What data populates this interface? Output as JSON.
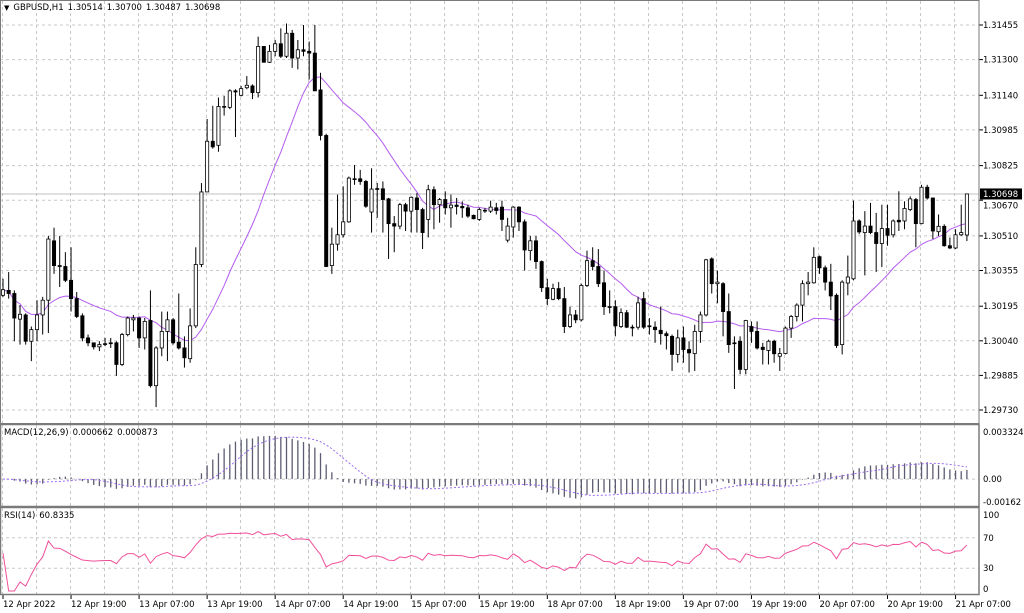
{
  "chart_data": {
    "type": "candlestick",
    "header": {
      "menu_icon": "triangle-down-icon",
      "symbol_timeframe": "GBPUSD,H1",
      "open": "1.30514",
      "high": "1.30700",
      "low": "1.30487",
      "close": "1.30698"
    },
    "current_price_label": "1.30698",
    "current_price": 1.30698,
    "y_ticks": [
      "1.31455",
      "1.31300",
      "1.31140",
      "1.30985",
      "1.30825",
      "1.30670",
      "1.30510",
      "1.30355",
      "1.30195",
      "1.30040",
      "1.29885",
      "1.29730"
    ],
    "ylim": [
      1.2973,
      1.31455
    ],
    "x_ticks": [
      {
        "bar": 0,
        "label": "12 Apr 2022"
      },
      {
        "bar": 12,
        "label": "12 Apr 19:00"
      },
      {
        "bar": 24,
        "label": "13 Apr 07:00"
      },
      {
        "bar": 36,
        "label": "13 Apr 19:00"
      },
      {
        "bar": 48,
        "label": "14 Apr 07:00"
      },
      {
        "bar": 60,
        "label": "14 Apr 19:00"
      },
      {
        "bar": 72,
        "label": "15 Apr 07:00"
      },
      {
        "bar": 84,
        "label": "15 Apr 19:00"
      },
      {
        "bar": 96,
        "label": "18 Apr 07:00"
      },
      {
        "bar": 108,
        "label": "18 Apr 19:00"
      },
      {
        "bar": 120,
        "label": "19 Apr 07:00"
      },
      {
        "bar": 132,
        "label": "19 Apr 19:00"
      },
      {
        "bar": 144,
        "label": "20 Apr 07:00"
      },
      {
        "bar": 156,
        "label": "20 Apr 19:00"
      },
      {
        "bar": 168,
        "label": "21 Apr 07:00"
      }
    ],
    "grid": true,
    "colors": {
      "bull_body": "#ffffff",
      "bear_body": "#000000",
      "wick": "#000000",
      "ma": "#b45cf0",
      "macd_hist": "#5c5c72",
      "macd_signal": "#9a6cf0",
      "rsi": "#f0509a",
      "grid": "#c8c8c8",
      "current_price_line": "#c0c0c0"
    },
    "candles_ohlc": [
      [
        1.30244,
        1.30318,
        1.30237,
        1.30269
      ],
      [
        1.30266,
        1.30348,
        1.30229,
        1.30252
      ],
      [
        1.30252,
        1.30266,
        1.30038,
        1.30142
      ],
      [
        1.30137,
        1.302,
        1.30023,
        1.30159
      ],
      [
        1.30156,
        1.30163,
        1.30023,
        1.30038
      ],
      [
        1.30038,
        1.30104,
        1.29949,
        1.3009
      ],
      [
        1.3009,
        1.30222,
        1.30038,
        1.30156
      ],
      [
        1.30156,
        1.30237,
        1.30068,
        1.30222
      ],
      [
        1.30222,
        1.3051,
        1.30075,
        1.30496
      ],
      [
        1.30488,
        1.30547,
        1.3034,
        1.30377
      ],
      [
        1.30377,
        1.3051,
        1.30281,
        1.30373
      ],
      [
        1.30373,
        1.30437,
        1.30303,
        1.30311
      ],
      [
        1.30311,
        1.30459,
        1.30171,
        1.30229
      ],
      [
        1.30229,
        1.30259,
        1.30142,
        1.30149
      ],
      [
        1.30152,
        1.30163,
        1.30038,
        1.30053
      ],
      [
        1.30053,
        1.30068,
        1.30016,
        1.30031
      ],
      [
        1.30031,
        1.30031,
        1.30001,
        1.30013
      ],
      [
        1.30013,
        1.30038,
        1.29994,
        1.30023
      ],
      [
        1.30027,
        1.30053,
        1.30016,
        1.30026
      ],
      [
        1.30031,
        1.30053,
        1.30008,
        1.30027
      ],
      [
        1.30031,
        1.30038,
        1.29883,
        1.29934
      ],
      [
        1.29934,
        1.30075,
        1.29927,
        1.30068
      ],
      [
        1.30068,
        1.30149,
        1.3006,
        1.30142
      ],
      [
        1.30134,
        1.30156,
        1.30082,
        1.30142
      ],
      [
        1.30142,
        1.30149,
        1.30008,
        1.30053
      ],
      [
        1.30053,
        1.30142,
        1.30001,
        1.30127
      ],
      [
        1.30131,
        1.30266,
        1.29831,
        1.29839
      ],
      [
        1.29839,
        1.30016,
        1.29743,
        1.30008
      ],
      [
        1.30008,
        1.30171,
        1.29971,
        1.30082
      ],
      [
        1.30082,
        1.30171,
        1.29949,
        1.30134
      ],
      [
        1.30134,
        1.30142,
        1.30023,
        1.30031
      ],
      [
        1.30034,
        1.30252,
        1.30001,
        1.30008
      ],
      [
        1.30008,
        1.3006,
        1.2992,
        1.29964
      ],
      [
        1.2996,
        1.30185,
        1.29942,
        1.30107
      ],
      [
        1.30107,
        1.30459,
        1.30097,
        1.30382
      ],
      [
        1.30382,
        1.30747,
        1.3037,
        1.30707
      ],
      [
        1.30707,
        1.31034,
        1.30707,
        1.30934
      ],
      [
        1.30934,
        1.31093,
        1.30901,
        1.30909
      ],
      [
        1.30916,
        1.3113,
        1.30887,
        1.3109
      ],
      [
        1.3109,
        1.31137,
        1.31049,
        1.3109
      ],
      [
        1.31086,
        1.31167,
        1.31078,
        1.3116
      ],
      [
        1.3116,
        1.31167,
        1.30953,
        1.31155
      ],
      [
        1.3114,
        1.31182,
        1.31135,
        1.3117
      ],
      [
        1.31174,
        1.31226,
        1.31167,
        1.31185
      ],
      [
        1.31182,
        1.31189,
        1.31123,
        1.31152
      ],
      [
        1.31152,
        1.31403,
        1.3113,
        1.31359
      ],
      [
        1.31359,
        1.31359,
        1.31288,
        1.31288
      ],
      [
        1.31288,
        1.31366,
        1.31285,
        1.31337
      ],
      [
        1.31337,
        1.31388,
        1.31315,
        1.31371
      ],
      [
        1.31371,
        1.3144,
        1.31307,
        1.31315
      ],
      [
        1.31315,
        1.31462,
        1.31307,
        1.31418
      ],
      [
        1.31418,
        1.31433,
        1.31263,
        1.31307
      ],
      [
        1.31307,
        1.31388,
        1.31256,
        1.31344
      ],
      [
        1.31344,
        1.31455,
        1.31315,
        1.31337
      ],
      [
        1.31337,
        1.31381,
        1.31211,
        1.31329
      ],
      [
        1.31329,
        1.31455,
        1.3116,
        1.3116
      ],
      [
        1.31164,
        1.31241,
        1.30938,
        1.3096
      ],
      [
        1.3096,
        1.30968,
        1.3037,
        1.30373
      ],
      [
        1.30377,
        1.30547,
        1.3034,
        1.30473
      ],
      [
        1.30473,
        1.30695,
        1.30444,
        1.30515
      ],
      [
        1.30515,
        1.30732,
        1.30503,
        1.30573
      ],
      [
        1.30573,
        1.30776,
        1.30569,
        1.30769
      ],
      [
        1.30766,
        1.30828,
        1.30739,
        1.30764
      ],
      [
        1.30766,
        1.30806,
        1.30739,
        1.30754
      ],
      [
        1.30754,
        1.30761,
        1.30636,
        1.30643
      ],
      [
        1.30617,
        1.30813,
        1.30525,
        1.3072
      ],
      [
        1.30721,
        1.30747,
        1.30591,
        1.30722
      ],
      [
        1.30721,
        1.30754,
        1.30525,
        1.30673
      ],
      [
        1.30676,
        1.3068,
        1.30407,
        1.30565
      ],
      [
        1.30565,
        1.30599,
        1.30437,
        1.30554
      ],
      [
        1.30554,
        1.30658,
        1.3054,
        1.3065
      ],
      [
        1.3065,
        1.30658,
        1.30532,
        1.30621
      ],
      [
        1.30621,
        1.30687,
        1.30525,
        1.30683
      ],
      [
        1.3068,
        1.30702,
        1.30525,
        1.30628
      ],
      [
        1.30628,
        1.30636,
        1.30451,
        1.30525
      ],
      [
        1.30584,
        1.30739,
        1.30503,
        1.30717
      ],
      [
        1.30717,
        1.30732,
        1.3054,
        1.3065
      ],
      [
        1.3065,
        1.3068,
        1.30569,
        1.30673
      ],
      [
        1.30673,
        1.3071,
        1.30606,
        1.30636
      ],
      [
        1.30636,
        1.30695,
        1.30547,
        1.30648
      ],
      [
        1.30648,
        1.3068,
        1.30606,
        1.30642
      ],
      [
        1.30642,
        1.30665,
        1.30591,
        1.30636
      ],
      [
        1.30636,
        1.3065,
        1.30591,
        1.30599
      ],
      [
        1.30602,
        1.30606,
        1.30584,
        1.30587
      ],
      [
        1.30584,
        1.30636,
        1.30577,
        1.30628
      ],
      [
        1.30624,
        1.30636,
        1.30613,
        1.30625
      ],
      [
        1.30621,
        1.30668,
        1.30613,
        1.30639
      ],
      [
        1.30636,
        1.30658,
        1.30606,
        1.30624
      ],
      [
        1.30639,
        1.30668,
        1.30532,
        1.30584
      ],
      [
        1.30491,
        1.30591,
        1.30481,
        1.30554
      ],
      [
        1.3055,
        1.30643,
        1.30503,
        1.30639
      ],
      [
        1.30639,
        1.30643,
        1.30532,
        1.30573
      ],
      [
        1.30573,
        1.30584,
        1.30355,
        1.30447
      ],
      [
        1.30444,
        1.3051,
        1.304,
        1.30488
      ],
      [
        1.30488,
        1.3051,
        1.30362,
        1.30395
      ],
      [
        1.30395,
        1.304,
        1.30259,
        1.30278
      ],
      [
        1.30278,
        1.30318,
        1.302,
        1.30229
      ],
      [
        1.30226,
        1.30296,
        1.30222,
        1.30274
      ],
      [
        1.30274,
        1.30303,
        1.30222,
        1.30229
      ],
      [
        1.30229,
        1.30281,
        1.30075,
        1.30104
      ],
      [
        1.30104,
        1.30193,
        1.30097,
        1.30156
      ],
      [
        1.30156,
        1.30178,
        1.30119,
        1.30134
      ],
      [
        1.30134,
        1.30296,
        1.30127,
        1.30288
      ],
      [
        1.30288,
        1.30444,
        1.30281,
        1.30399
      ],
      [
        1.30399,
        1.30459,
        1.30355,
        1.30373
      ],
      [
        1.30373,
        1.30451,
        1.30281,
        1.30296
      ],
      [
        1.303,
        1.30355,
        1.30156,
        1.30193
      ],
      [
        1.30193,
        1.30266,
        1.30163,
        1.30191
      ],
      [
        1.30193,
        1.30222,
        1.3006,
        1.30107
      ],
      [
        1.30104,
        1.30185,
        1.30097,
        1.30166
      ],
      [
        1.30166,
        1.30178,
        1.30097,
        1.30101
      ],
      [
        1.30101,
        1.30112,
        1.3006,
        1.301
      ],
      [
        1.30101,
        1.30237,
        1.3009,
        1.3021
      ],
      [
        1.30229,
        1.30259,
        1.30093,
        1.30101
      ],
      [
        1.30107,
        1.30142,
        1.30068,
        1.30104
      ],
      [
        1.30101,
        1.30127,
        1.30031,
        1.3009
      ],
      [
        1.30087,
        1.30193,
        1.30023,
        1.30072
      ],
      [
        1.30072,
        1.30082,
        1.30001,
        1.30063
      ],
      [
        1.3006,
        1.30068,
        1.29905,
        1.29979
      ],
      [
        1.29979,
        1.3009,
        1.29942,
        1.30053
      ],
      [
        1.30053,
        1.30104,
        1.29942,
        1.30001
      ],
      [
        1.30001,
        1.30038,
        1.29898,
        1.29986
      ],
      [
        1.29983,
        1.30112,
        1.29905,
        1.30082
      ],
      [
        1.30082,
        1.30171,
        1.30031,
        1.30156
      ],
      [
        1.30156,
        1.30407,
        1.30149,
        1.30403
      ],
      [
        1.30407,
        1.30414,
        1.30252,
        1.30296
      ],
      [
        1.30296,
        1.30355,
        1.30208,
        1.30303
      ],
      [
        1.30296,
        1.30303,
        1.3006,
        1.30171
      ],
      [
        1.30171,
        1.30252,
        1.29986,
        1.30023
      ],
      [
        1.30031,
        1.3006,
        1.29824,
        1.30027
      ],
      [
        1.30038,
        1.3006,
        1.2989,
        1.29912
      ],
      [
        1.29912,
        1.30134,
        1.2989,
        1.30131
      ],
      [
        1.30104,
        1.30127,
        1.30031,
        1.30082
      ],
      [
        1.30082,
        1.30127,
        1.30001,
        1.30008
      ],
      [
        1.30011,
        1.30031,
        1.29934,
        1.30001
      ],
      [
        1.29997,
        1.30045,
        1.29934,
        1.30038
      ],
      [
        1.30038,
        1.30045,
        1.29942,
        1.29982
      ],
      [
        1.29971,
        1.30008,
        1.29905,
        1.29983
      ],
      [
        1.29983,
        1.30104,
        1.29979,
        1.30097
      ],
      [
        1.30097,
        1.30156,
        1.30053,
        1.30149
      ],
      [
        1.30149,
        1.30208,
        1.30127,
        1.302
      ],
      [
        1.302,
        1.30311,
        1.30127,
        1.30296
      ],
      [
        1.30296,
        1.30348,
        1.30244,
        1.30303
      ],
      [
        1.303,
        1.30459,
        1.30296,
        1.30414
      ],
      [
        1.30417,
        1.30422,
        1.3034,
        1.30367
      ],
      [
        1.30367,
        1.30377,
        1.30266,
        1.30303
      ],
      [
        1.30303,
        1.30385,
        1.30178,
        1.30241
      ],
      [
        1.30244,
        1.30252,
        1.30008,
        1.30019
      ],
      [
        1.30023,
        1.30311,
        1.29979,
        1.30303
      ],
      [
        1.30299,
        1.30422,
        1.30244,
        1.30326
      ],
      [
        1.30318,
        1.30668,
        1.30311,
        1.30577
      ],
      [
        1.30577,
        1.30584,
        1.30518,
        1.30528
      ],
      [
        1.30525,
        1.30621,
        1.30333,
        1.30554
      ],
      [
        1.30554,
        1.30658,
        1.30518,
        1.30525
      ],
      [
        1.30525,
        1.30613,
        1.30348,
        1.30476
      ],
      [
        1.30476,
        1.3065,
        1.3037,
        1.30543
      ],
      [
        1.30543,
        1.3065,
        1.30466,
        1.30513
      ],
      [
        1.30515,
        1.30584,
        1.30503,
        1.30577
      ],
      [
        1.3058,
        1.3071,
        1.30532,
        1.30573
      ],
      [
        1.30577,
        1.30665,
        1.3054,
        1.30633
      ],
      [
        1.30628,
        1.30687,
        1.30621,
        1.30676
      ],
      [
        1.30673,
        1.3068,
        1.30459,
        1.30565
      ],
      [
        1.30565,
        1.30739,
        1.30562,
        1.30728
      ],
      [
        1.30728,
        1.30739,
        1.30673,
        1.3068
      ],
      [
        1.3068,
        1.3068,
        1.30496,
        1.30532
      ],
      [
        1.30529,
        1.30606,
        1.3051,
        1.30553
      ],
      [
        1.30553,
        1.30562,
        1.30462,
        1.30466
      ],
      [
        1.30466,
        1.30503,
        1.30451,
        1.30456
      ],
      [
        1.30456,
        1.3054,
        1.30451,
        1.30515
      ],
      [
        1.30515,
        1.3065,
        1.3051,
        1.30525
      ],
      [
        1.30514,
        1.307,
        1.30487,
        1.30698
      ]
    ],
    "macd": {
      "label": "MACD(12,26,9)",
      "main_value": "0.000662",
      "signal_value": "0.000873",
      "y_ticks": [
        "0.003324",
        "0.00",
        "-0.00162"
      ],
      "ylim": [
        -0.00162,
        0.003324
      ]
    },
    "rsi": {
      "label": "RSI(14)",
      "value": "60.8335",
      "y_ticks": [
        "100",
        "70",
        "30",
        "0"
      ],
      "levels": [
        70,
        30
      ],
      "ylim": [
        0,
        100
      ]
    }
  }
}
